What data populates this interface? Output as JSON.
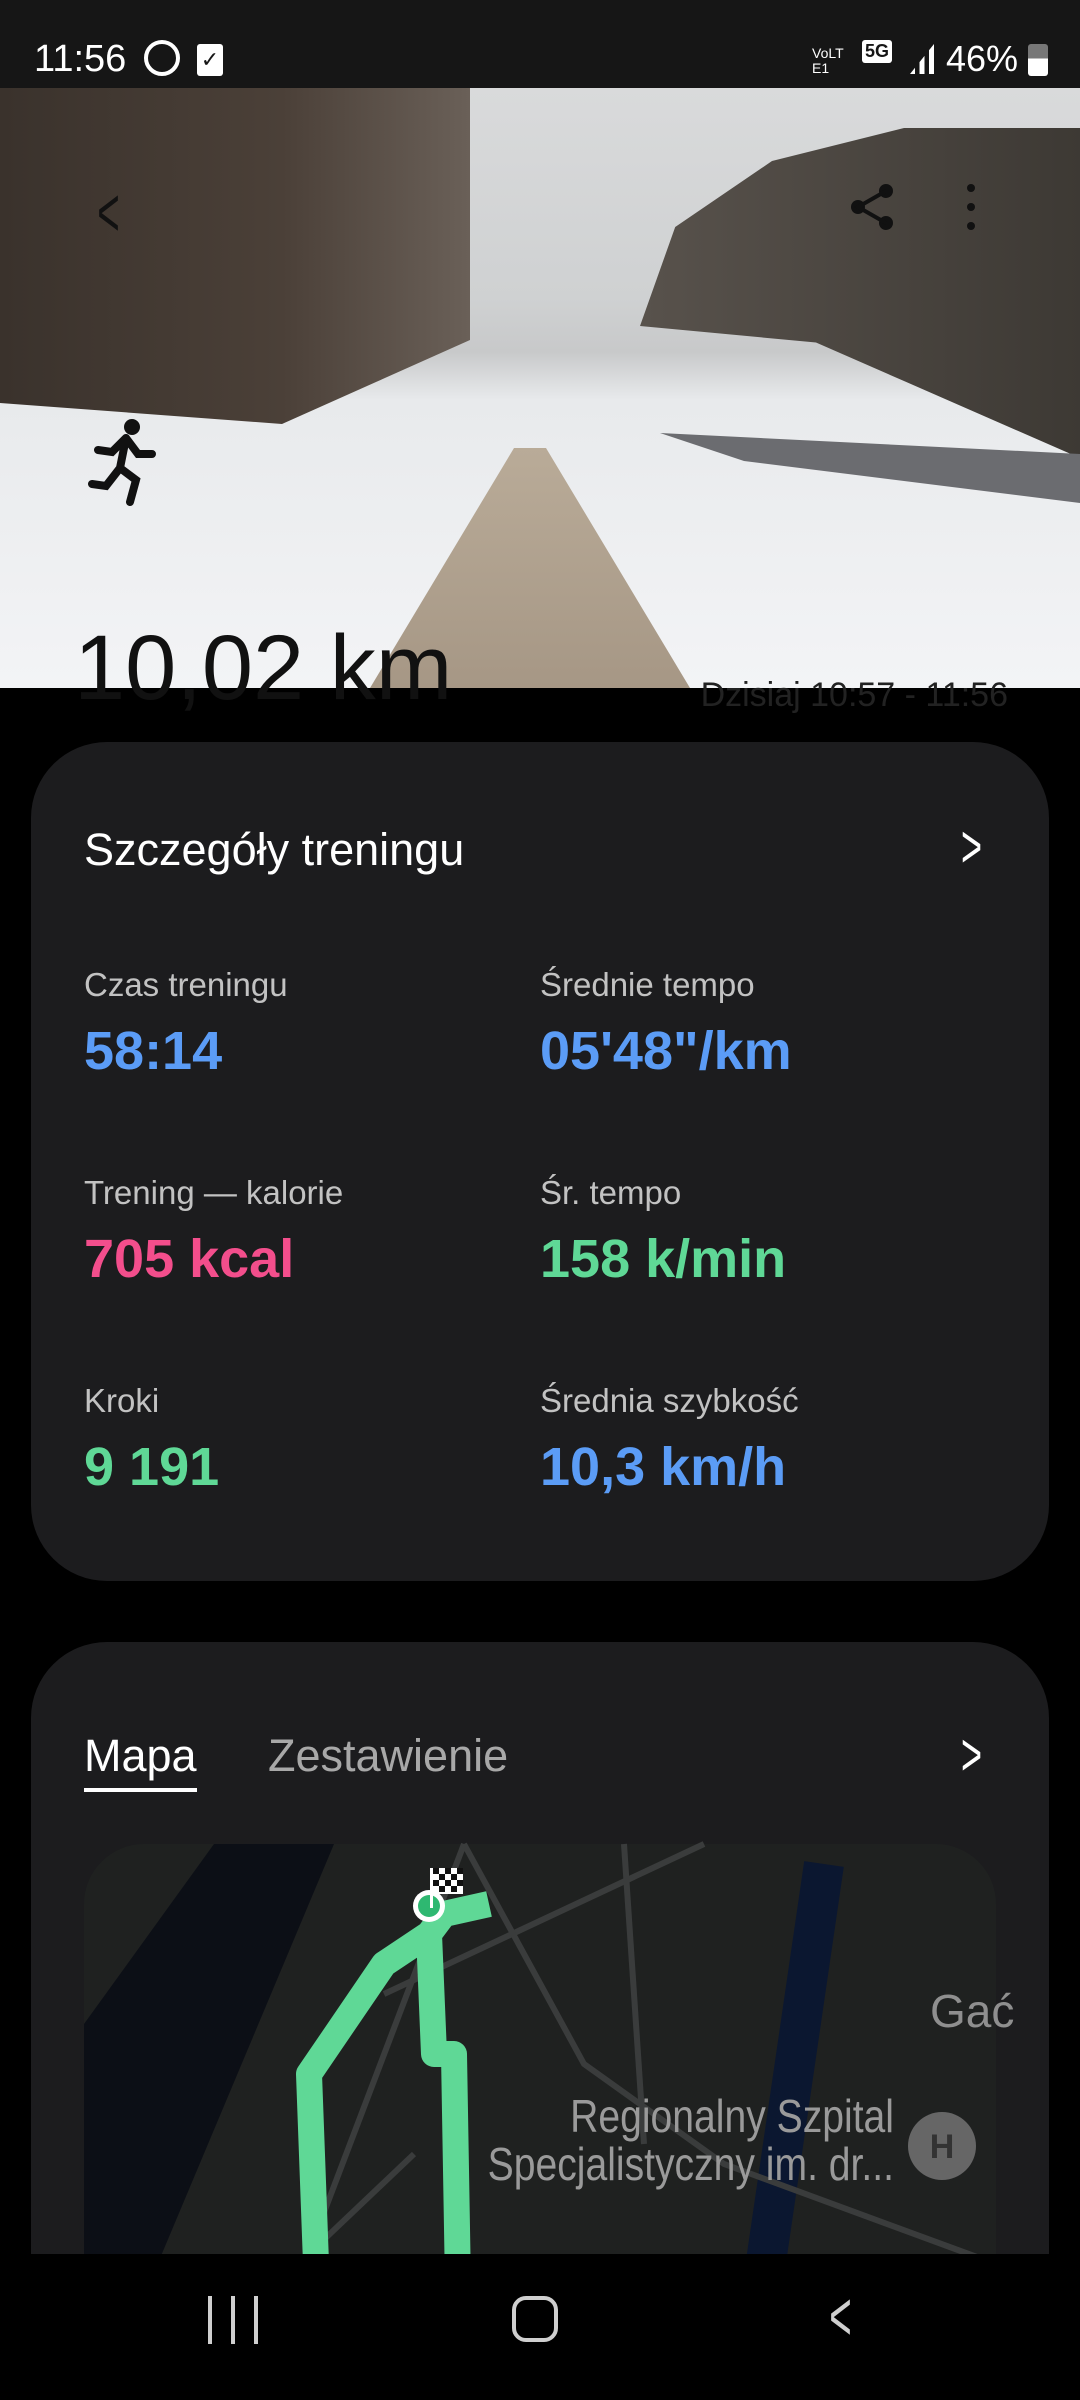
{
  "status_bar": {
    "time": "11:56",
    "network": "VoLTE1",
    "network_type": "5G",
    "battery": "46%",
    "icons": [
      "whatsapp-icon",
      "checkbox-notification-icon",
      "signal-icon",
      "battery-icon"
    ]
  },
  "hero": {
    "distance": "10,02 km",
    "time_range": "Dzisiaj 10:57 - 11:56",
    "activity_icon": "running-icon"
  },
  "details": {
    "title": "Szczegóły treningu",
    "stats": [
      {
        "label": "Czas treningu",
        "value": "58:14",
        "color": "#5b9cf6"
      },
      {
        "label": "Średnie tempo",
        "value": "05'48\"/km",
        "color": "#5b9cf6"
      },
      {
        "label": "Trening — kalorie",
        "value": "705 kcal",
        "color": "#f34e8c"
      },
      {
        "label": "Śr. tempo",
        "value": "158 k/min",
        "color": "#5fd896"
      },
      {
        "label": "Kroki",
        "value": "9 191",
        "color": "#5fd896"
      },
      {
        "label": "Średnia szybkość",
        "value": "10,3 km/h",
        "color": "#5b9cf6"
      }
    ]
  },
  "map_card": {
    "tabs": [
      {
        "label": "Mapa",
        "active": true
      },
      {
        "label": "Zestawienie",
        "active": false
      }
    ],
    "map_labels": {
      "place": "Gać",
      "hospital_line1": "Regionalny Szpital",
      "hospital_line2": "Specjalistyczny im. dr..."
    },
    "route_color": "#5fd896"
  }
}
